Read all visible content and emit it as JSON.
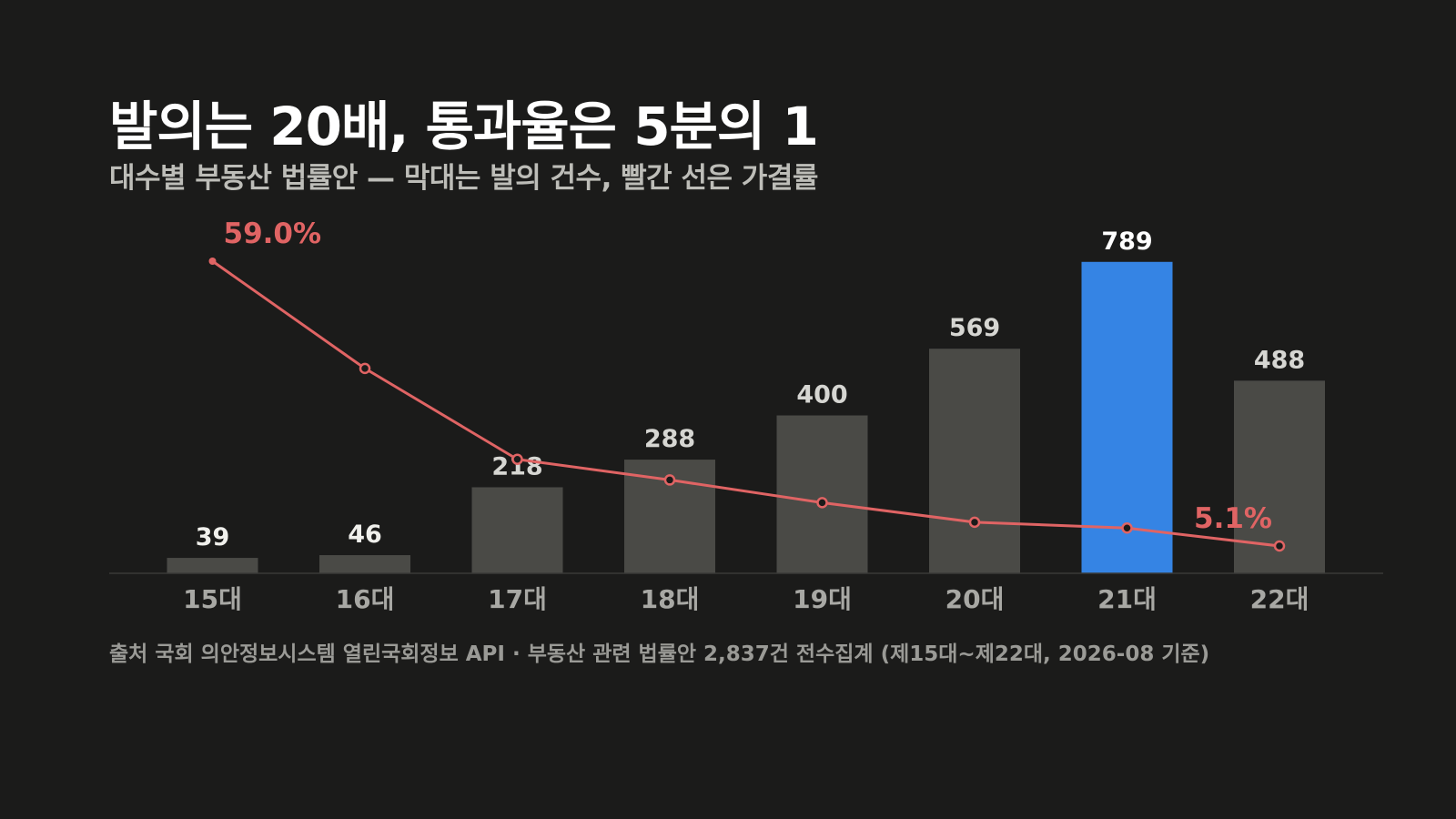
{
  "title": "발의는 20배, 통과율은 5분의 1",
  "subtitle": "대수별 부동산 법률안 — 막대는 발의 건수, 빨간 선은 가결률",
  "source": "출처 국회 의안정보시스템 열린국회정보 API · 부동산 관련 법률안 2,837건 전수집계 (제15대~제22대, 2026-08 기준)",
  "chart_data": {
    "type": "bar",
    "categories": [
      "15대",
      "16대",
      "17대",
      "18대",
      "19대",
      "20대",
      "21대",
      "22대"
    ],
    "series": [
      {
        "values": [
          39,
          46,
          218,
          288,
          400,
          569,
          789,
          488
        ],
        "labels": [
          "39",
          "46",
          "218",
          "288",
          "400",
          "569",
          "789",
          "488"
        ]
      },
      {
        "type": "line",
        "values": [
          59.0,
          38.7,
          21.5,
          17.6,
          13.3,
          9.6,
          8.5,
          5.1
        ],
        "annotations": {
          "0": "59.0%",
          "7": "5.1%"
        }
      }
    ],
    "highlight_category": "21대",
    "colors": {
      "bar": "#4a4a46",
      "bar_highlight": "#3584e4",
      "line": "#e06464",
      "axis": "#3a3a38",
      "tick_text": "#a8a8a4",
      "label_text": "#d6d6d2",
      "label_highlight": "#ffffff"
    },
    "grid": false,
    "legend": "none"
  }
}
